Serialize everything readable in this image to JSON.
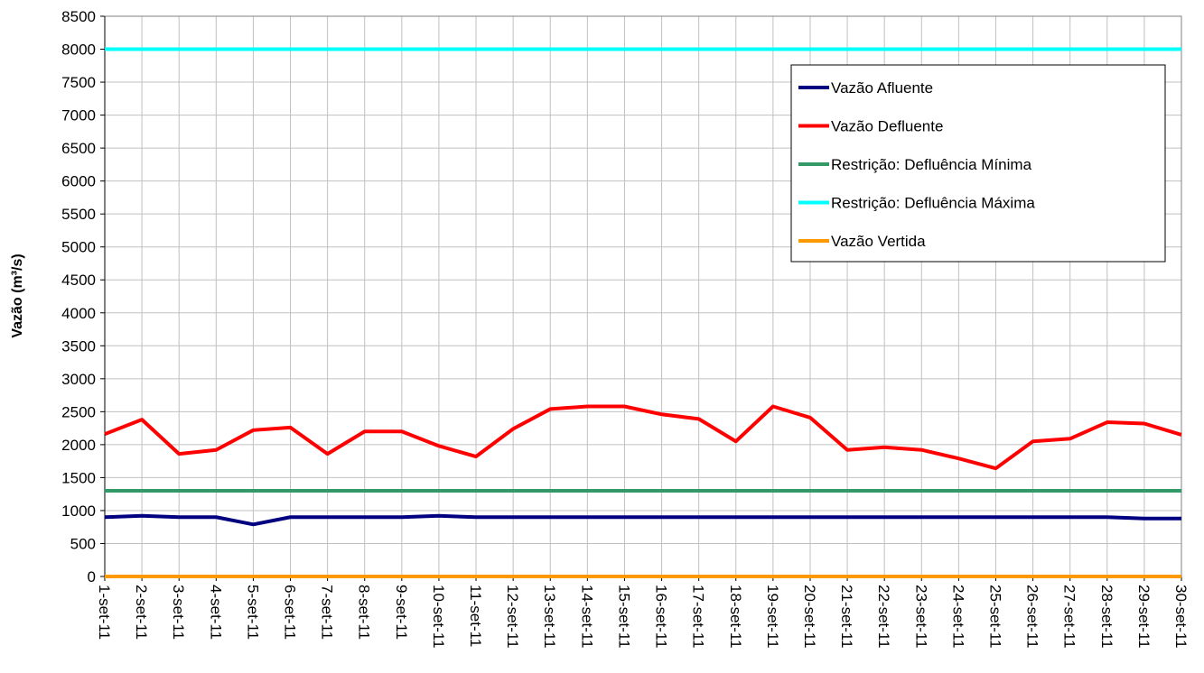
{
  "chart_data": {
    "type": "line",
    "y_label": "Vazão (m³/s)",
    "categories": [
      "1-set-11",
      "2-set-11",
      "3-set-11",
      "4-set-11",
      "5-set-11",
      "6-set-11",
      "7-set-11",
      "8-set-11",
      "9-set-11",
      "10-set-11",
      "11-set-11",
      "12-set-11",
      "13-set-11",
      "14-set-11",
      "15-set-11",
      "16-set-11",
      "17-set-11",
      "18-set-11",
      "19-set-11",
      "20-set-11",
      "21-set-11",
      "22-set-11",
      "23-set-11",
      "24-set-11",
      "25-set-11",
      "26-set-11",
      "27-set-11",
      "28-set-11",
      "29-set-11",
      "30-set-11"
    ],
    "series": [
      {
        "name": "Vazão Afluente",
        "color": "#000080",
        "values": [
          900,
          920,
          900,
          900,
          790,
          900,
          900,
          900,
          900,
          920,
          900,
          900,
          900,
          900,
          900,
          900,
          900,
          900,
          900,
          900,
          900,
          900,
          900,
          900,
          900,
          900,
          900,
          900,
          880,
          880
        ]
      },
      {
        "name": "Vazão Defluente",
        "color": "#ff0000",
        "values": [
          2160,
          2380,
          1860,
          1920,
          2220,
          2260,
          1860,
          2200,
          2200,
          1980,
          1820,
          2240,
          2540,
          2580,
          2580,
          2460,
          2390,
          2050,
          2580,
          2410,
          1920,
          1960,
          1920,
          1790,
          1640,
          2050,
          2090,
          2340,
          2320,
          2150
        ]
      },
      {
        "name": "Restrição: Defluência Mínima",
        "color": "#339966",
        "values": [
          1300,
          1300,
          1300,
          1300,
          1300,
          1300,
          1300,
          1300,
          1300,
          1300,
          1300,
          1300,
          1300,
          1300,
          1300,
          1300,
          1300,
          1300,
          1300,
          1300,
          1300,
          1300,
          1300,
          1300,
          1300,
          1300,
          1300,
          1300,
          1300,
          1300
        ]
      },
      {
        "name": "Restrição: Defluência Máxima",
        "color": "#00ffff",
        "values": [
          8000,
          8000,
          8000,
          8000,
          8000,
          8000,
          8000,
          8000,
          8000,
          8000,
          8000,
          8000,
          8000,
          8000,
          8000,
          8000,
          8000,
          8000,
          8000,
          8000,
          8000,
          8000,
          8000,
          8000,
          8000,
          8000,
          8000,
          8000,
          8000,
          8000
        ]
      },
      {
        "name": "Vazão Vertida",
        "color": "#ff9900",
        "values": [
          0,
          0,
          0,
          0,
          0,
          0,
          0,
          0,
          0,
          0,
          0,
          0,
          0,
          0,
          0,
          0,
          0,
          0,
          0,
          0,
          0,
          0,
          0,
          0,
          0,
          0,
          0,
          0,
          0,
          0
        ]
      }
    ],
    "ylim": [
      0,
      8500
    ],
    "yticks": [
      0,
      500,
      1000,
      1500,
      2000,
      2500,
      3000,
      3500,
      4000,
      4500,
      5000,
      5500,
      6000,
      6500,
      7000,
      7500,
      8000,
      8500
    ],
    "grid": true
  }
}
